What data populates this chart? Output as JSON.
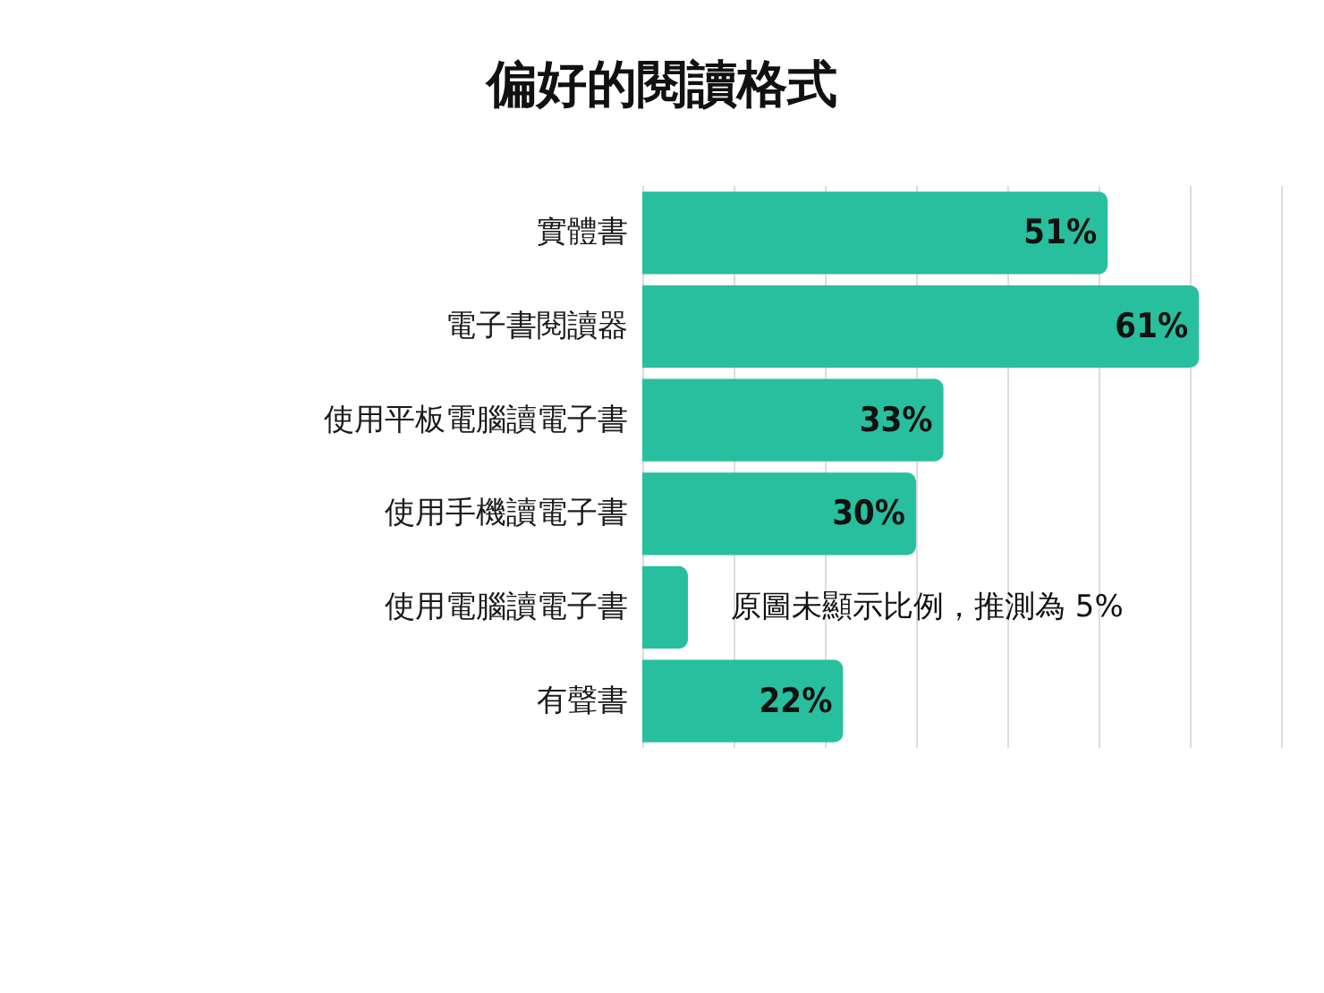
{
  "chart_data": {
    "type": "bar",
    "orientation": "horizontal",
    "title": "偏好的閱讀格式",
    "categories": [
      "實體書",
      "電子書閱讀器",
      "使用平板電腦讀電子書",
      "使用手機讀電子書",
      "使用電腦讀電子書",
      "有聲書"
    ],
    "values": [
      51,
      61,
      33,
      30,
      5,
      22
    ],
    "value_labels": [
      "51%",
      "61%",
      "33%",
      "30%",
      null,
      "22%"
    ],
    "color": "#28bf9e",
    "xlim": [
      0,
      70
    ],
    "xticks": [
      {
        "value": 0,
        "label": null
      },
      {
        "value": 10,
        "label": null
      },
      {
        "value": 20,
        "label": null
      },
      {
        "value": 30,
        "label": null
      },
      {
        "value": 40,
        "label": null
      },
      {
        "value": 50,
        "label": null
      },
      {
        "value": 60,
        "label": null
      },
      {
        "value": 70,
        "label": null
      }
    ],
    "grid": "x",
    "tick_labels": "y",
    "annotations": [
      {
        "text": "原圖未顯示比例，推測為 5%",
        "x": 5,
        "y": "使用電腦讀電子書"
      }
    ]
  }
}
